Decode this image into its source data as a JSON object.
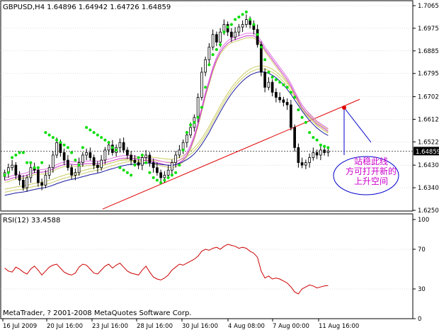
{
  "header": {
    "symbol_line": "GBPUSD,H4  1.64896  1.64942  1.64726  1.64859"
  },
  "rsi_panel": {
    "label": "RSI(12) 33.4588"
  },
  "footer": {
    "copyright": "MetaTrader, ? 2001-2008 MetaQuotes Software Corp."
  },
  "annotation": {
    "lines": [
      "站稳此线",
      "方可打开新的",
      "上升空间"
    ]
  },
  "colors": {
    "candle": "#000000",
    "bid_line": "#000000",
    "sar": "#00dd00",
    "ma_fast": "#cc33cc",
    "ma_slow": "#1a1aa0",
    "ma_light": "#cccc66",
    "trendline": "#e00000",
    "rsi_line": "#cc0000",
    "annotation": "#cc00cc",
    "annotation_outline": "#0000cc",
    "grid": "#c0c0c0"
  },
  "chart_data": [
    {
      "type": "candlestick",
      "title": "GBPUSD,H4",
      "ylim": [
        1.625,
        1.7065
      ],
      "y_ticks": [
        "1.70650",
        "1.69750",
        "1.68850",
        "1.67950",
        "1.67025",
        "1.66125",
        "1.65225",
        "1.64300",
        "1.63400",
        "1.62500"
      ],
      "current_price": "1.64859",
      "x_ticks": [
        "16 Jul 2009",
        "20 Jul 16:00",
        "23 Jul 16:00",
        "28 Jul 16:00",
        "30 Jul 16:00",
        "4 Aug 08:00",
        "7 Aug 00:00",
        "11 Aug 16:00"
      ],
      "close": [
        1.64,
        1.642,
        1.643,
        1.639,
        1.637,
        1.634,
        1.638,
        1.642,
        1.641,
        1.636,
        1.635,
        1.639,
        1.642,
        1.647,
        1.652,
        1.648,
        1.645,
        1.642,
        1.639,
        1.64,
        1.644,
        1.647,
        1.648,
        1.646,
        1.643,
        1.642,
        1.645,
        1.649,
        1.651,
        1.648,
        1.65,
        1.652,
        1.649,
        1.647,
        1.645,
        1.644,
        1.643,
        1.646,
        1.647,
        1.644,
        1.642,
        1.64,
        1.638,
        1.639,
        1.641,
        1.644,
        1.647,
        1.649,
        1.652,
        1.655,
        1.658,
        1.662,
        1.67,
        1.68,
        1.685,
        1.69,
        1.695,
        1.692,
        1.696,
        1.699,
        1.696,
        1.694,
        1.696,
        1.698,
        1.699,
        1.701,
        1.699,
        1.697,
        1.691,
        1.68,
        1.674,
        1.676,
        1.672,
        1.67,
        1.669,
        1.668,
        1.667,
        1.658,
        1.65,
        1.644,
        1.643,
        1.644,
        1.646,
        1.648,
        1.647,
        1.649,
        1.648,
        1.6486
      ],
      "sar": [
        1.639,
        1.64,
        1.646,
        1.647,
        1.648,
        1.648,
        1.644,
        1.644,
        1.642,
        1.642,
        1.644,
        1.656,
        1.655,
        1.654,
        1.653,
        1.652,
        1.651,
        1.65,
        1.648,
        1.645,
        1.643,
        1.65,
        1.658,
        1.657,
        1.656,
        1.655,
        1.654,
        1.653,
        1.652,
        1.65,
        1.649,
        1.642,
        1.641,
        1.64,
        1.639,
        1.643,
        1.646,
        1.647,
        1.644,
        1.64,
        1.638,
        1.637,
        1.636,
        1.637,
        1.638,
        1.639,
        1.64,
        1.643,
        1.649,
        1.656,
        1.659,
        1.66,
        1.662,
        1.666,
        1.674,
        1.683,
        1.687,
        1.689,
        1.691,
        1.696,
        1.698,
        1.699,
        1.701,
        1.702,
        1.703,
        1.704,
        1.701,
        1.699,
        1.695,
        1.69,
        1.685,
        1.68,
        1.678,
        1.677,
        1.676,
        1.675,
        1.674,
        1.672,
        1.67,
        1.665,
        1.662,
        1.66,
        1.656,
        1.654,
        1.653,
        1.651,
        1.6505,
        1.65
      ],
      "ma_fast": [
        1.637,
        1.6372,
        1.6378,
        1.6382,
        1.6384,
        1.6386,
        1.639,
        1.6396,
        1.64,
        1.6402,
        1.6402,
        1.6404,
        1.6408,
        1.6414,
        1.6422,
        1.6428,
        1.6432,
        1.6434,
        1.6434,
        1.6432,
        1.6432,
        1.6434,
        1.6436,
        1.6436,
        1.6436,
        1.6436,
        1.6436,
        1.644,
        1.6444,
        1.6448,
        1.6452,
        1.6456,
        1.6458,
        1.6458,
        1.6458,
        1.6456,
        1.6452,
        1.645,
        1.6448,
        1.6446,
        1.6444,
        1.644,
        1.6436,
        1.6432,
        1.643,
        1.6428,
        1.6432,
        1.644,
        1.645,
        1.647,
        1.65,
        1.654,
        1.659,
        1.665,
        1.671,
        1.676,
        1.681,
        1.685,
        1.688,
        1.69,
        1.6915,
        1.6925,
        1.693,
        1.6935,
        1.694,
        1.6945,
        1.6945,
        1.6945,
        1.6935,
        1.6915,
        1.689,
        1.687,
        1.685,
        1.683,
        1.681,
        1.679,
        1.677,
        1.6745,
        1.6715,
        1.6685,
        1.666,
        1.664,
        1.6625,
        1.661,
        1.6595,
        1.6585,
        1.6575,
        1.6565
      ],
      "ma_slow": [
        1.631,
        1.6313,
        1.6316,
        1.6319,
        1.6321,
        1.6323,
        1.6326,
        1.633,
        1.6333,
        1.6336,
        1.6338,
        1.6341,
        1.6345,
        1.635,
        1.6356,
        1.6361,
        1.6366,
        1.637,
        1.6373,
        1.6376,
        1.638,
        1.6384,
        1.6388,
        1.6392,
        1.6395,
        1.6398,
        1.6402,
        1.6407,
        1.6412,
        1.6416,
        1.642,
        1.6425,
        1.6428,
        1.6431,
        1.6433,
        1.6434,
        1.6435,
        1.6437,
        1.6438,
        1.6438,
        1.6437,
        1.6435,
        1.6433,
        1.6431,
        1.643,
        1.6429,
        1.6432,
        1.6437,
        1.6444,
        1.6452,
        1.6462,
        1.6475,
        1.6492,
        1.6512,
        1.6535,
        1.656,
        1.6588,
        1.6615,
        1.6642,
        1.6668,
        1.6692,
        1.6714,
        1.6733,
        1.675,
        1.6765,
        1.6778,
        1.6788,
        1.6795,
        1.68,
        1.6802,
        1.68,
        1.6795,
        1.6788,
        1.6778,
        1.6765,
        1.675,
        1.6732,
        1.6712,
        1.669,
        1.6668,
        1.6646,
        1.6626,
        1.6608,
        1.6592,
        1.6578,
        1.6566,
        1.6556,
        1.6548
      ]
    },
    {
      "type": "line",
      "title": "RSI(12) 33.4588",
      "ylim": [
        0,
        100
      ],
      "y_ticks": [
        "100",
        "70",
        "30",
        "0"
      ],
      "values": [
        51,
        48,
        47,
        52,
        50,
        47,
        45,
        50,
        53,
        49,
        44,
        48,
        52,
        54,
        55,
        51,
        47,
        45,
        44,
        46,
        52,
        55,
        54,
        50,
        46,
        45,
        49,
        53,
        55,
        51,
        54,
        56,
        52,
        48,
        46,
        45,
        44,
        49,
        53,
        47,
        42,
        40,
        39,
        41,
        44,
        49,
        52,
        55,
        54,
        56,
        58,
        60,
        63,
        68,
        70,
        69,
        71,
        72,
        70,
        73,
        75,
        74,
        73,
        71,
        72,
        71,
        68,
        66,
        62,
        48,
        41,
        43,
        40,
        41,
        40,
        38,
        36,
        32,
        27,
        25,
        30,
        32,
        34,
        33,
        31,
        32,
        33,
        33.4588
      ]
    }
  ]
}
